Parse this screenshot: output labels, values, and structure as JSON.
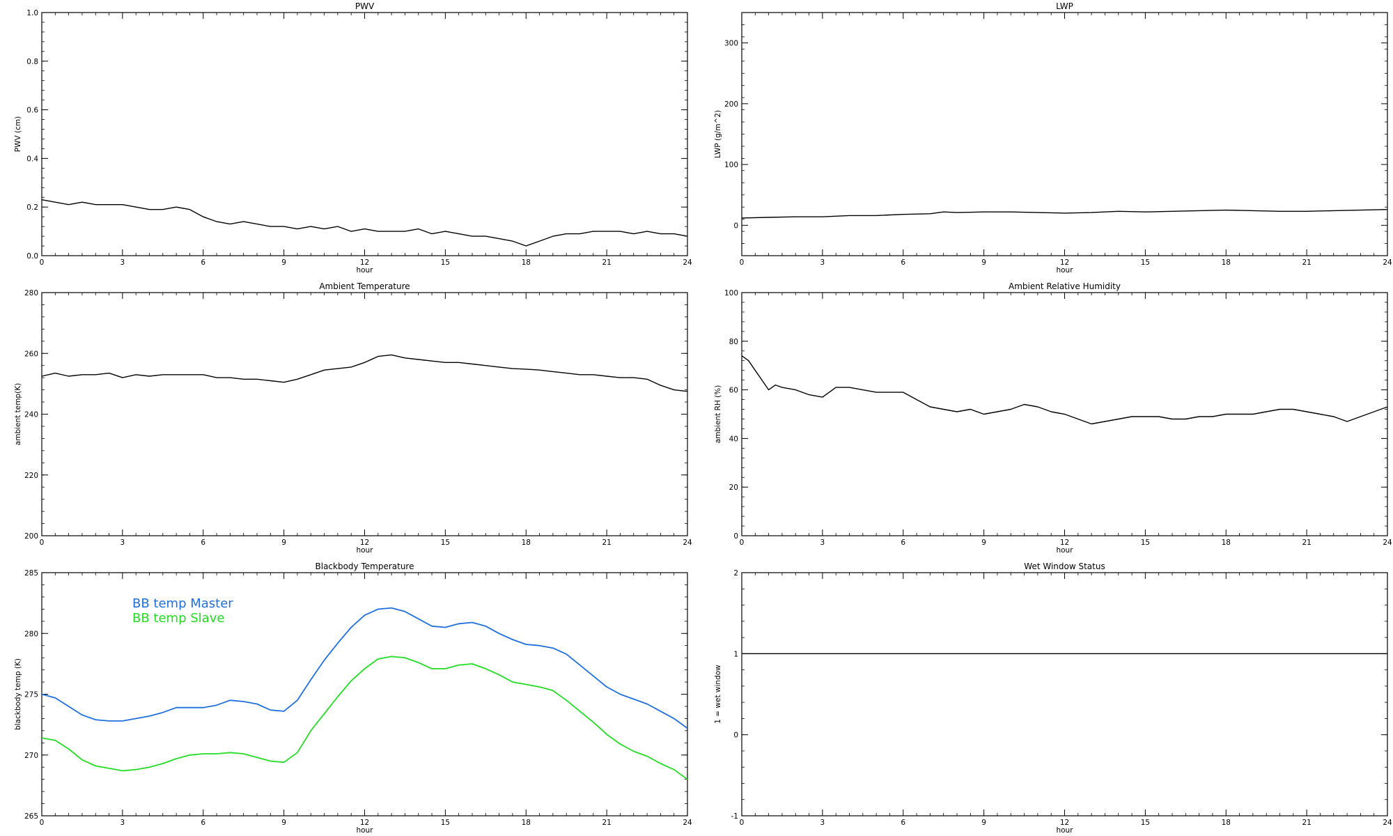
{
  "chart_data": [
    {
      "type": "line",
      "title": "PWV",
      "xlabel": "hour",
      "ylabel": "PWV (cm)",
      "xlim": [
        0,
        24
      ],
      "ylim": [
        0,
        1.0
      ],
      "xticks": [
        "0",
        "3",
        "6",
        "9",
        "12",
        "15",
        "18",
        "21",
        "24"
      ],
      "yticks": [
        "0.0",
        "0.2",
        "0.4",
        "0.6",
        "0.8",
        "1.0"
      ],
      "series": [
        {
          "color": "#000000",
          "x": [
            0,
            0.5,
            1,
            1.5,
            2,
            2.5,
            3,
            3.5,
            4,
            4.5,
            5,
            5.5,
            6,
            6.5,
            7,
            7.5,
            8,
            8.5,
            9,
            9.5,
            10,
            10.5,
            11,
            11.5,
            12,
            12.5,
            13,
            13.5,
            14,
            14.5,
            15,
            15.5,
            16,
            16.5,
            17,
            17.5,
            18,
            18.5,
            19,
            19.5,
            20,
            20.5,
            21,
            21.5,
            22,
            22.5,
            23,
            23.5,
            24
          ],
          "values": [
            0.23,
            0.22,
            0.21,
            0.22,
            0.21,
            0.21,
            0.21,
            0.2,
            0.19,
            0.19,
            0.2,
            0.19,
            0.16,
            0.14,
            0.13,
            0.14,
            0.13,
            0.12,
            0.12,
            0.11,
            0.12,
            0.11,
            0.12,
            0.1,
            0.11,
            0.1,
            0.1,
            0.1,
            0.11,
            0.09,
            0.1,
            0.09,
            0.08,
            0.08,
            0.07,
            0.06,
            0.04,
            0.06,
            0.08,
            0.09,
            0.09,
            0.1,
            0.1,
            0.1,
            0.09,
            0.1,
            0.09,
            0.09,
            0.08
          ]
        }
      ]
    },
    {
      "type": "line",
      "title": "LWP",
      "xlabel": "hour",
      "ylabel": "LWP (g/m^2)",
      "xlim": [
        0,
        24
      ],
      "ylim": [
        -50,
        350
      ],
      "xticks": [
        "0",
        "3",
        "6",
        "9",
        "12",
        "15",
        "18",
        "21",
        "24"
      ],
      "yticks": [
        "0",
        "100",
        "200",
        "300"
      ],
      "series": [
        {
          "color": "#000000",
          "x": [
            0,
            1,
            2,
            3,
            4,
            5,
            6,
            7,
            7.5,
            8,
            9,
            10,
            11,
            12,
            13,
            14,
            15,
            16,
            17,
            18,
            19,
            20,
            21,
            22,
            23,
            24
          ],
          "values": [
            12,
            13,
            14,
            14,
            16,
            16,
            18,
            19,
            22,
            21,
            22,
            22,
            21,
            20,
            21,
            23,
            22,
            23,
            24,
            25,
            24,
            23,
            23,
            24,
            25,
            26
          ]
        }
      ]
    },
    {
      "type": "line",
      "title": "Ambient Temperature",
      "xlabel": "hour",
      "ylabel": "ambient temp(K)",
      "xlim": [
        0,
        24
      ],
      "ylim": [
        200,
        280
      ],
      "xticks": [
        "0",
        "3",
        "6",
        "9",
        "12",
        "15",
        "18",
        "21",
        "24"
      ],
      "yticks": [
        "200",
        "220",
        "240",
        "260",
        "280"
      ],
      "series": [
        {
          "color": "#000000",
          "x": [
            0,
            0.5,
            1,
            1.5,
            2,
            2.5,
            3,
            3.5,
            4,
            4.5,
            5,
            5.5,
            6,
            6.5,
            7,
            7.5,
            8,
            8.5,
            9,
            9.5,
            10,
            10.5,
            11,
            11.5,
            12,
            12.5,
            13,
            13.5,
            14,
            14.5,
            15,
            15.5,
            16,
            16.5,
            17,
            17.5,
            18,
            18.5,
            19,
            19.5,
            20,
            20.5,
            21,
            21.5,
            22,
            22.5,
            23,
            23.5,
            24
          ],
          "values": [
            252.5,
            253.5,
            252.5,
            253,
            253,
            253.5,
            252,
            253,
            252.5,
            253,
            253,
            253,
            253,
            252,
            252,
            251.5,
            251.5,
            251,
            250.5,
            251.5,
            253,
            254.5,
            255,
            255.5,
            257,
            259,
            259.5,
            258.5,
            258,
            257.5,
            257,
            257,
            256.5,
            256,
            255.5,
            255,
            254.8,
            254.5,
            254,
            253.5,
            253,
            253,
            252.5,
            252,
            252,
            251.5,
            249.5,
            248,
            247.5
          ]
        }
      ]
    },
    {
      "type": "line",
      "title": "Ambient Relative Humidity",
      "xlabel": "hour",
      "ylabel": "ambient RH (%)",
      "xlim": [
        0,
        24
      ],
      "ylim": [
        0,
        100
      ],
      "xticks": [
        "0",
        "3",
        "6",
        "9",
        "12",
        "15",
        "18",
        "21",
        "24"
      ],
      "yticks": [
        "0",
        "20",
        "40",
        "60",
        "80",
        "100"
      ],
      "series": [
        {
          "color": "#000000",
          "x": [
            0,
            0.25,
            0.5,
            0.75,
            1,
            1.25,
            1.5,
            2,
            2.5,
            3,
            3.5,
            4,
            4.5,
            5,
            5.5,
            6,
            6.5,
            7,
            7.5,
            8,
            8.5,
            9,
            9.5,
            10,
            10.5,
            11,
            11.5,
            12,
            12.5,
            13,
            13.5,
            14,
            14.5,
            15,
            15.5,
            16,
            16.5,
            17,
            17.5,
            18,
            18.5,
            19,
            19.5,
            20,
            20.5,
            21,
            21.5,
            22,
            22.5,
            23,
            23.5,
            24
          ],
          "values": [
            74,
            72,
            68,
            64,
            60,
            62,
            61,
            60,
            58,
            57,
            61,
            61,
            60,
            59,
            59,
            59,
            56,
            53,
            52,
            51,
            52,
            50,
            51,
            52,
            54,
            53,
            51,
            50,
            48,
            46,
            47,
            48,
            49,
            49,
            49,
            48,
            48,
            49,
            49,
            50,
            50,
            50,
            51,
            52,
            52,
            51,
            50,
            49,
            47,
            49,
            51,
            53
          ]
        }
      ]
    },
    {
      "type": "line",
      "title": "Blackbody Temperature",
      "xlabel": "hour",
      "ylabel": "blackbody temp (K)",
      "xlim": [
        0,
        24
      ],
      "ylim": [
        265,
        285
      ],
      "xticks": [
        "0",
        "3",
        "6",
        "9",
        "12",
        "15",
        "18",
        "21",
        "24"
      ],
      "yticks": [
        "265",
        "270",
        "275",
        "280",
        "285"
      ],
      "legend": "top-left",
      "series": [
        {
          "name": "BB temp Master",
          "color": "#1f6fe0",
          "x": [
            0,
            0.5,
            1,
            1.5,
            2,
            2.5,
            3,
            3.5,
            4,
            4.5,
            5,
            5.5,
            6,
            6.5,
            7,
            7.5,
            8,
            8.5,
            9,
            9.5,
            10,
            10.5,
            11,
            11.5,
            12,
            12.5,
            13,
            13.5,
            14,
            14.5,
            15,
            15.5,
            16,
            16.5,
            17,
            17.5,
            18,
            18.5,
            19,
            19.5,
            20,
            20.5,
            21,
            21.5,
            22,
            22.5,
            23,
            23.5,
            24
          ],
          "values": [
            275,
            274.7,
            274,
            273.3,
            272.9,
            272.8,
            272.8,
            273,
            273.2,
            273.5,
            273.9,
            273.9,
            273.9,
            274.1,
            274.5,
            274.4,
            274.2,
            273.7,
            273.6,
            274.5,
            276.2,
            277.8,
            279.2,
            280.5,
            281.5,
            282,
            282.1,
            281.8,
            281.2,
            280.6,
            280.5,
            280.8,
            280.9,
            280.6,
            280,
            279.5,
            279.1,
            279,
            278.8,
            278.3,
            277.4,
            276.5,
            275.6,
            275,
            274.6,
            274.2,
            273.6,
            273,
            272.2
          ]
        },
        {
          "name": "BB temp Slave",
          "color": "#22dd22",
          "x": [
            0,
            0.5,
            1,
            1.5,
            2,
            2.5,
            3,
            3.5,
            4,
            4.5,
            5,
            5.5,
            6,
            6.5,
            7,
            7.5,
            8,
            8.5,
            9,
            9.5,
            10,
            10.5,
            11,
            11.5,
            12,
            12.5,
            13,
            13.5,
            14,
            14.5,
            15,
            15.5,
            16,
            16.5,
            17,
            17.5,
            18,
            18.5,
            19,
            19.5,
            20,
            20.5,
            21,
            21.5,
            22,
            22.5,
            23,
            23.5,
            24
          ],
          "values": [
            271.4,
            271.2,
            270.5,
            269.6,
            269.1,
            268.9,
            268.7,
            268.8,
            269,
            269.3,
            269.7,
            270,
            270.1,
            270.1,
            270.2,
            270.1,
            269.8,
            269.5,
            269.4,
            270.2,
            272,
            273.4,
            274.8,
            276.1,
            277.1,
            277.9,
            278.1,
            278,
            277.6,
            277.1,
            277.1,
            277.4,
            277.5,
            277.1,
            276.6,
            276,
            275.8,
            275.6,
            275.3,
            274.5,
            273.6,
            272.7,
            271.7,
            270.9,
            270.3,
            269.9,
            269.3,
            268.8,
            268
          ]
        }
      ]
    },
    {
      "type": "line",
      "title": "Wet Window Status",
      "xlabel": "hour",
      "ylabel": "1 = wet window",
      "xlim": [
        0,
        24
      ],
      "ylim": [
        -1,
        2
      ],
      "xticks": [
        "0",
        "3",
        "6",
        "9",
        "12",
        "15",
        "18",
        "21",
        "24"
      ],
      "yticks": [
        "-1",
        "0",
        "1",
        "2"
      ],
      "series": [
        {
          "color": "#000000",
          "x": [
            0,
            24
          ],
          "values": [
            1,
            1
          ]
        }
      ]
    }
  ]
}
